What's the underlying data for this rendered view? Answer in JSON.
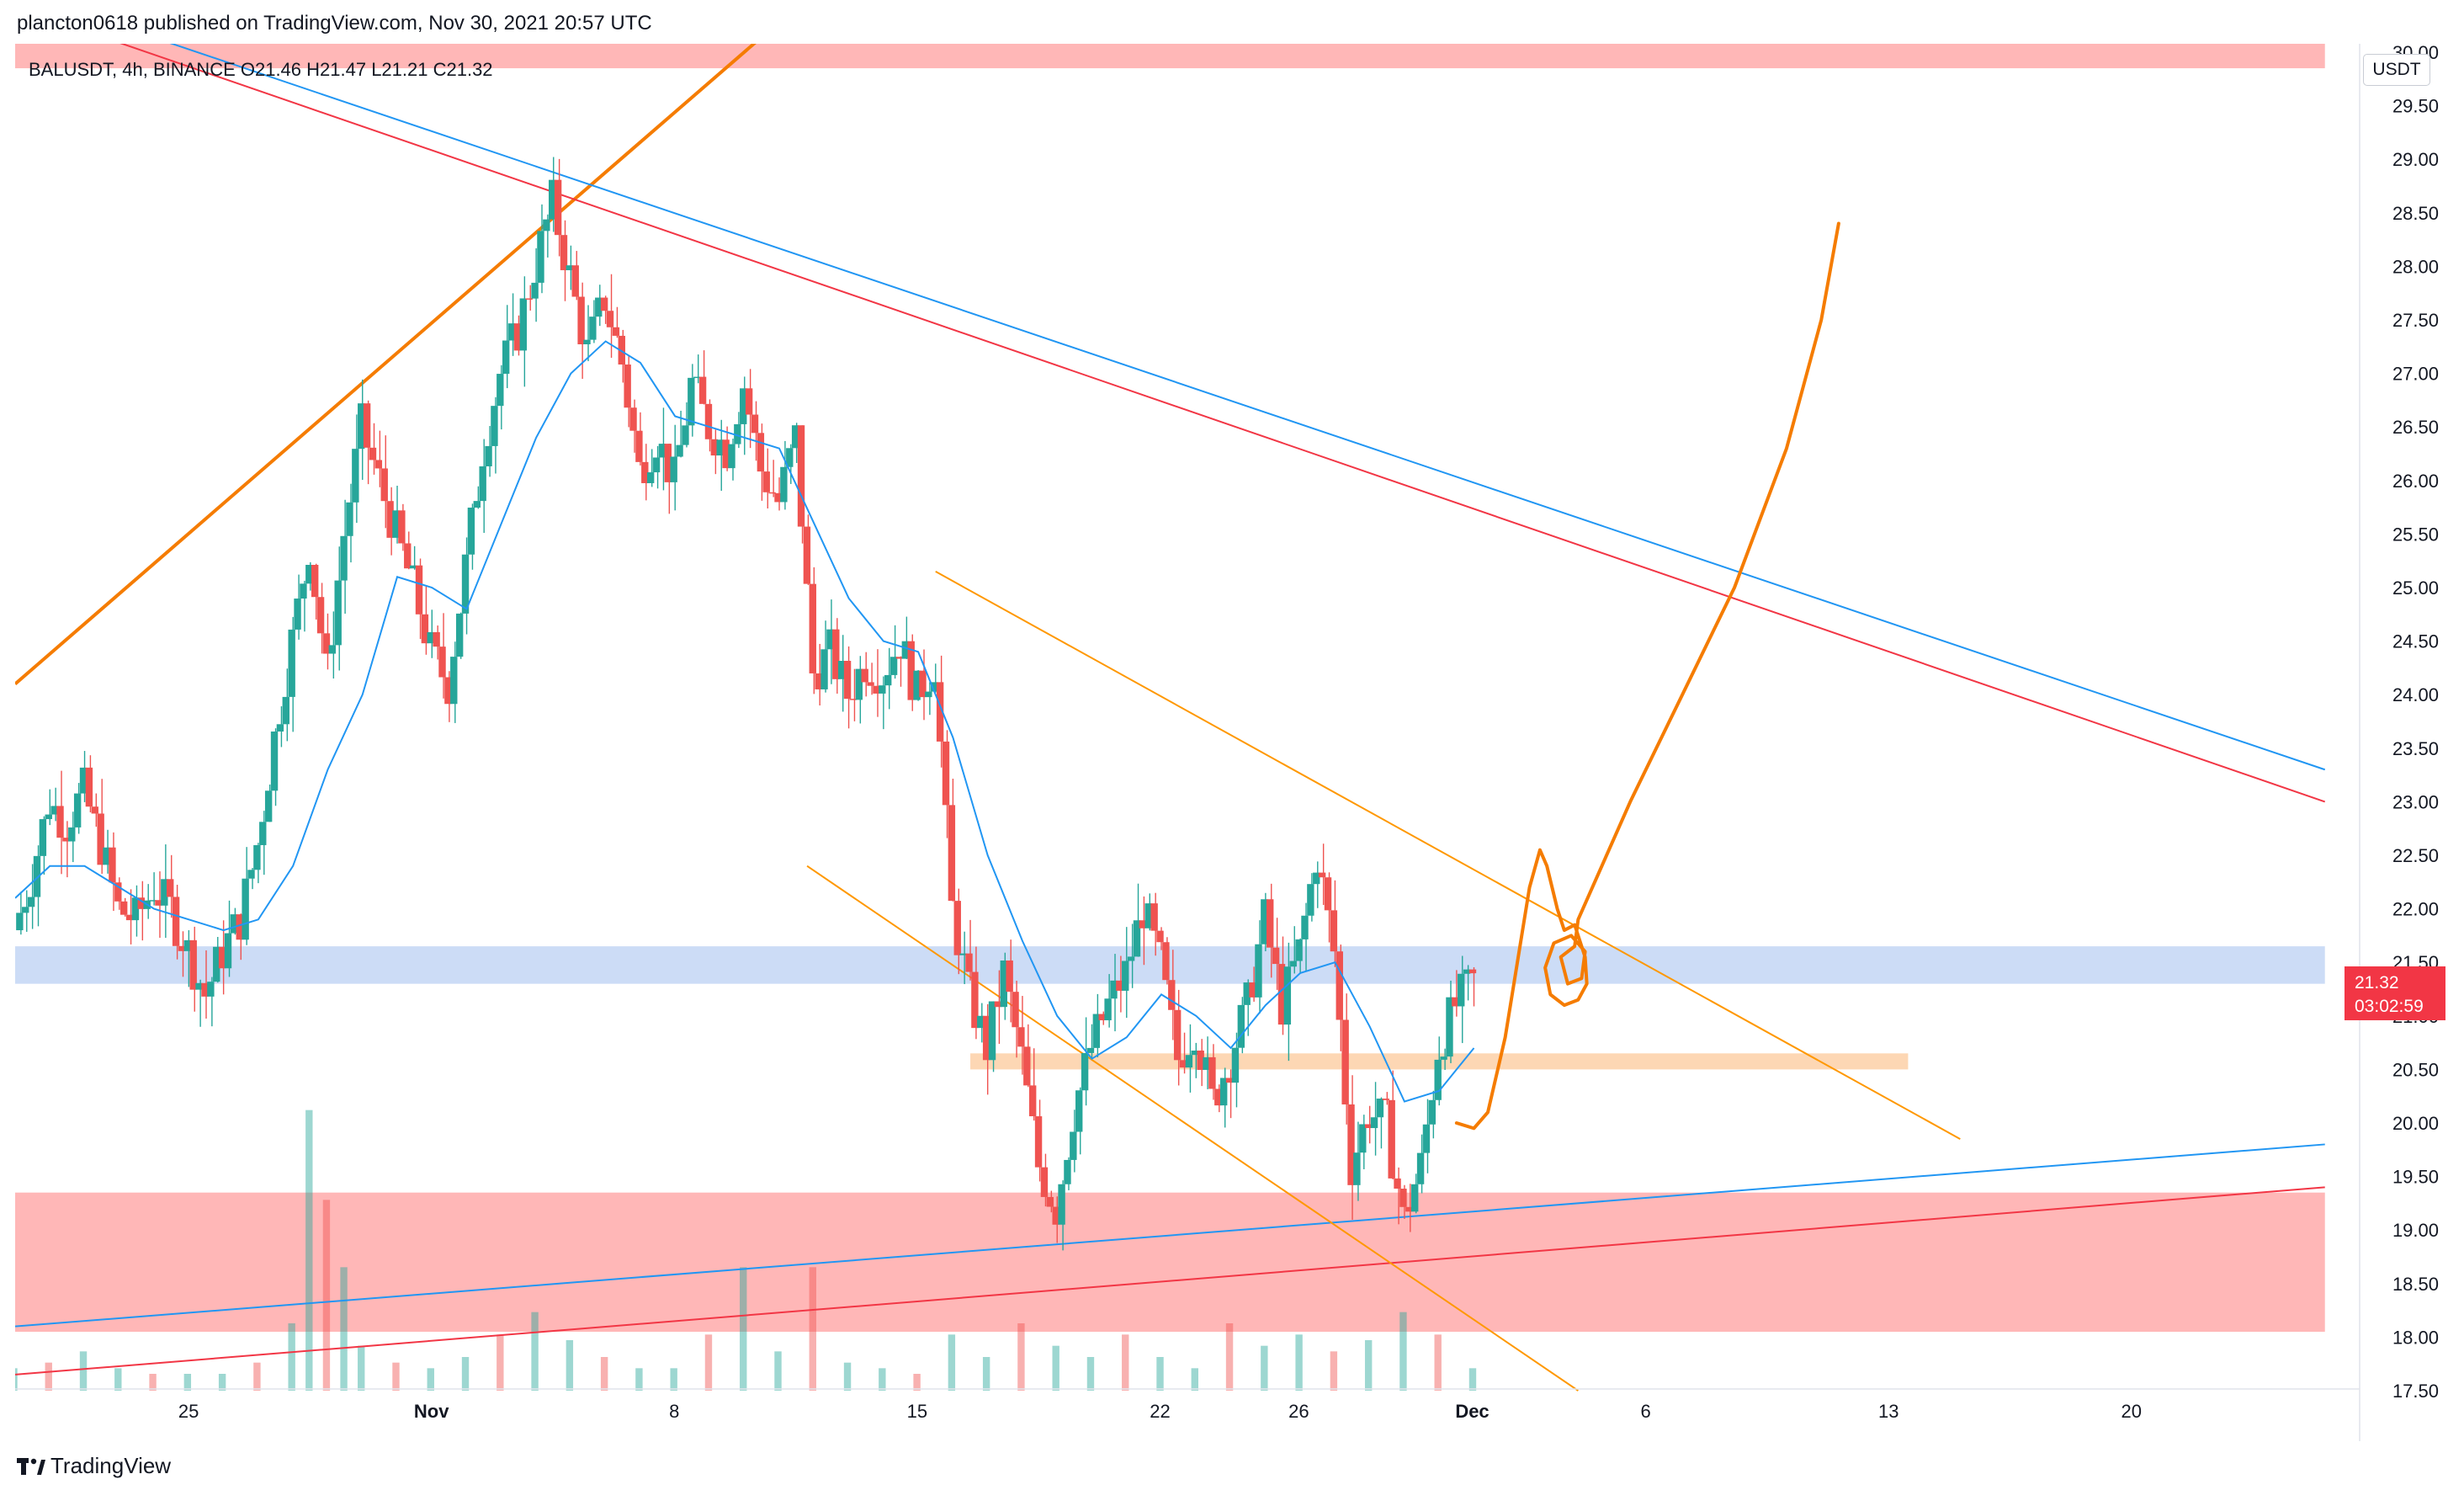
{
  "header": {
    "published": "plancton0618 published on TradingView.com, Nov 30, 2021 20:57 UTC"
  },
  "symbol": {
    "info": "BALUSDT, 4h, BINANCE  O21.46  H21.47  L21.21  C21.32"
  },
  "currency": "USDT",
  "last_price": {
    "price": "21.32",
    "countdown": "03:02:59",
    "color": "#f23645"
  },
  "footer": {
    "brand": "TradingView"
  },
  "colors": {
    "up": "#26a69a",
    "down": "#ef5350",
    "ema": "#2196f3",
    "zone_red": "#ffb3b3",
    "zone_blue": "#c7d8f5",
    "zone_orange": "#fdd5b0",
    "trend_orange": "#f57c00",
    "channel_orange": "#ff9800",
    "line_red": "#f23645",
    "line_blue": "#2196f3"
  },
  "chart_data": {
    "type": "candlestick",
    "symbol": "BALUSDT",
    "interval": "4h",
    "exchange": "BINANCE",
    "ylim": [
      17.5,
      30.0
    ],
    "y_ticks": [
      17.5,
      18.0,
      18.5,
      19.0,
      19.5,
      20.0,
      20.5,
      21.0,
      21.5,
      22.0,
      22.5,
      23.0,
      23.5,
      24.0,
      24.5,
      25.0,
      25.5,
      26.0,
      26.5,
      27.0,
      27.5,
      28.0,
      28.5,
      29.0,
      29.5,
      30.0
    ],
    "x_ticks": [
      {
        "label": "25",
        "day": -6
      },
      {
        "label": "Nov",
        "day": 1
      },
      {
        "label": "8",
        "day": 8
      },
      {
        "label": "15",
        "day": 15
      },
      {
        "label": "22",
        "day": 22
      },
      {
        "label": "26",
        "day": 26
      },
      {
        "label": "Dec",
        "day": 31
      },
      {
        "label": "6",
        "day": 36
      },
      {
        "label": "13",
        "day": 43
      },
      {
        "label": "20",
        "day": 50
      }
    ],
    "x_ticks_bold": [
      "Nov",
      "Dec"
    ],
    "xlim_days": [
      -11.0,
      56.5
    ],
    "ohlc_close_path": [
      [
        -11.0,
        21.8
      ],
      [
        -10.5,
        22.3
      ],
      [
        -10.0,
        23.0
      ],
      [
        -9.5,
        22.8
      ],
      [
        -9.0,
        23.1
      ],
      [
        -8.5,
        22.6
      ],
      [
        -8.0,
        22.0
      ],
      [
        -7.5,
        21.9
      ],
      [
        -7.0,
        22.2
      ],
      [
        -6.5,
        22.0
      ],
      [
        -6.0,
        21.6
      ],
      [
        -5.5,
        21.2
      ],
      [
        -5.0,
        21.6
      ],
      [
        -4.5,
        21.9
      ],
      [
        -4.0,
        22.6
      ],
      [
        -3.5,
        23.6
      ],
      [
        -3.0,
        24.5
      ],
      [
        -2.5,
        25.4
      ],
      [
        -2.0,
        24.2
      ],
      [
        -1.5,
        25.5
      ],
      [
        -1.0,
        26.5
      ],
      [
        -0.5,
        26.0
      ],
      [
        0.0,
        25.5
      ],
      [
        0.5,
        25.0
      ],
      [
        1.0,
        24.4
      ],
      [
        1.5,
        24.1
      ],
      [
        2.0,
        25.2
      ],
      [
        2.5,
        26.3
      ],
      [
        3.0,
        27.0
      ],
      [
        3.5,
        27.4
      ],
      [
        4.0,
        28.0
      ],
      [
        4.5,
        28.6
      ],
      [
        5.0,
        27.9
      ],
      [
        5.5,
        27.2
      ],
      [
        6.0,
        27.7
      ],
      [
        6.5,
        27.1
      ],
      [
        7.0,
        26.1
      ],
      [
        7.5,
        26.4
      ],
      [
        8.0,
        26.0
      ],
      [
        8.5,
        26.9
      ],
      [
        9.0,
        26.5
      ],
      [
        9.5,
        26.3
      ],
      [
        10.0,
        26.9
      ],
      [
        10.5,
        26.1
      ],
      [
        11.0,
        25.8
      ],
      [
        11.5,
        26.4
      ],
      [
        12.0,
        24.2
      ],
      [
        12.5,
        24.4
      ],
      [
        13.0,
        24.0
      ],
      [
        13.5,
        24.3
      ],
      [
        14.0,
        24.2
      ],
      [
        14.5,
        24.5
      ],
      [
        15.0,
        24.0
      ],
      [
        15.5,
        24.3
      ],
      [
        16.0,
        22.0
      ],
      [
        16.5,
        21.2
      ],
      [
        17.0,
        20.7
      ],
      [
        17.5,
        21.4
      ],
      [
        18.0,
        20.6
      ],
      [
        18.5,
        19.6
      ],
      [
        19.0,
        19.2
      ],
      [
        19.5,
        20.1
      ],
      [
        20.0,
        20.7
      ],
      [
        20.5,
        21.1
      ],
      [
        21.0,
        21.4
      ],
      [
        21.5,
        22.0
      ],
      [
        22.0,
        21.5
      ],
      [
        22.5,
        20.6
      ],
      [
        23.0,
        20.9
      ],
      [
        23.5,
        20.2
      ],
      [
        24.0,
        20.6
      ],
      [
        24.5,
        21.1
      ],
      [
        25.0,
        21.9
      ],
      [
        25.5,
        21.1
      ],
      [
        26.0,
        21.6
      ],
      [
        26.5,
        22.5
      ],
      [
        27.0,
        21.6
      ],
      [
        27.5,
        19.6
      ],
      [
        28.0,
        20.1
      ],
      [
        28.5,
        20.0
      ],
      [
        29.0,
        19.1
      ],
      [
        29.5,
        19.6
      ],
      [
        30.0,
        20.7
      ],
      [
        30.5,
        21.1
      ],
      [
        31.0,
        21.32
      ]
    ],
    "ema_20": [
      [
        -11.0,
        22.1
      ],
      [
        -10.0,
        22.4
      ],
      [
        -9.0,
        22.4
      ],
      [
        -8.0,
        22.2
      ],
      [
        -7.0,
        22.0
      ],
      [
        -6.0,
        21.9
      ],
      [
        -5.0,
        21.8
      ],
      [
        -4.0,
        21.9
      ],
      [
        -3.0,
        22.4
      ],
      [
        -2.0,
        23.3
      ],
      [
        -1.0,
        24.0
      ],
      [
        0.0,
        25.1
      ],
      [
        1.0,
        25.0
      ],
      [
        2.0,
        24.8
      ],
      [
        3.0,
        25.6
      ],
      [
        4.0,
        26.4
      ],
      [
        5.0,
        27.0
      ],
      [
        6.0,
        27.3
      ],
      [
        7.0,
        27.1
      ],
      [
        8.0,
        26.6
      ],
      [
        9.0,
        26.5
      ],
      [
        10.0,
        26.4
      ],
      [
        11.0,
        26.3
      ],
      [
        12.0,
        25.6
      ],
      [
        13.0,
        24.9
      ],
      [
        14.0,
        24.5
      ],
      [
        15.0,
        24.4
      ],
      [
        16.0,
        23.6
      ],
      [
        17.0,
        22.5
      ],
      [
        18.0,
        21.7
      ],
      [
        19.0,
        21.0
      ],
      [
        20.0,
        20.6
      ],
      [
        21.0,
        20.8
      ],
      [
        22.0,
        21.2
      ],
      [
        23.0,
        21.0
      ],
      [
        24.0,
        20.7
      ],
      [
        25.0,
        21.1
      ],
      [
        26.0,
        21.4
      ],
      [
        27.0,
        21.5
      ],
      [
        28.0,
        20.9
      ],
      [
        29.0,
        20.2
      ],
      [
        30.0,
        20.3
      ],
      [
        31.0,
        20.7
      ]
    ],
    "volume": [
      [
        -11.0,
        4
      ],
      [
        -10.0,
        5
      ],
      [
        -9.0,
        7
      ],
      [
        -8.0,
        4
      ],
      [
        -7.0,
        3
      ],
      [
        -6.0,
        3
      ],
      [
        -5.0,
        3
      ],
      [
        -4.0,
        5
      ],
      [
        -3.0,
        12
      ],
      [
        -2.5,
        50
      ],
      [
        -2.0,
        34
      ],
      [
        -1.5,
        22
      ],
      [
        -1.0,
        8
      ],
      [
        0.0,
        5
      ],
      [
        1.0,
        4
      ],
      [
        2.0,
        6
      ],
      [
        3.0,
        10
      ],
      [
        4.0,
        14
      ],
      [
        5.0,
        9
      ],
      [
        6.0,
        6
      ],
      [
        7.0,
        4
      ],
      [
        8.0,
        4
      ],
      [
        9.0,
        10
      ],
      [
        10.0,
        22
      ],
      [
        11.0,
        7
      ],
      [
        12.0,
        22
      ],
      [
        13.0,
        5
      ],
      [
        14.0,
        4
      ],
      [
        15.0,
        3
      ],
      [
        16.0,
        10
      ],
      [
        17.0,
        6
      ],
      [
        18.0,
        12
      ],
      [
        19.0,
        8
      ],
      [
        20.0,
        6
      ],
      [
        21.0,
        10
      ],
      [
        22.0,
        6
      ],
      [
        23.0,
        4
      ],
      [
        24.0,
        12
      ],
      [
        25.0,
        8
      ],
      [
        26.0,
        10
      ],
      [
        27.0,
        7
      ],
      [
        28.0,
        9
      ],
      [
        29.0,
        14
      ],
      [
        30.0,
        10
      ],
      [
        31.0,
        4
      ]
    ],
    "zones": [
      {
        "name": "resistance-zone",
        "y0": 29.85,
        "y1": 30.4,
        "x0": -11.0,
        "x1": 55.5,
        "color": "#ffb3b3"
      },
      {
        "name": "support-zone-blue",
        "y0": 21.3,
        "y1": 21.65,
        "x0": -11.0,
        "x1": 55.5,
        "color": "#c7d8f5"
      },
      {
        "name": "support-zone-orange",
        "y0": 20.5,
        "y1": 20.65,
        "x0": 16.5,
        "x1": 43.5,
        "color": "#fdd5b0"
      },
      {
        "name": "demand-zone",
        "y0": 18.05,
        "y1": 19.35,
        "x0": -11.0,
        "x1": 55.5,
        "color": "#ffb3b3"
      }
    ],
    "lines": [
      {
        "name": "orange-rising-trendline",
        "p1": [
          -11.0,
          24.1
        ],
        "p2": [
          10.7,
          30.2
        ],
        "color": "#f57c00",
        "width": 4
      },
      {
        "name": "red-falling-trendline",
        "p1": [
          -9.0,
          30.2
        ],
        "p2": [
          55.5,
          23.0
        ],
        "color": "#f23645",
        "width": 2
      },
      {
        "name": "blue-falling-trendline",
        "p1": [
          -8.5,
          30.3
        ],
        "p2": [
          55.5,
          23.3
        ],
        "color": "#2196f3",
        "width": 2
      },
      {
        "name": "blue-rising-trendline",
        "p1": [
          -11.0,
          18.1
        ],
        "p2": [
          55.5,
          19.8
        ],
        "color": "#2196f3",
        "width": 2
      },
      {
        "name": "red-rising-trendline",
        "p1": [
          -11.0,
          17.65
        ],
        "p2": [
          55.5,
          19.4
        ],
        "color": "#f23645",
        "width": 2
      },
      {
        "name": "channel-upper-line",
        "p1": [
          15.5,
          25.15
        ],
        "p2": [
          45.0,
          19.85
        ],
        "color": "#ff9800",
        "width": 2
      },
      {
        "name": "channel-lower-line",
        "p1": [
          11.8,
          22.4
        ],
        "p2": [
          34.0,
          17.5
        ],
        "color": "#ff9800",
        "width": 2
      }
    ],
    "projection_path": [
      [
        30.5,
        20.0
      ],
      [
        31.0,
        19.95
      ],
      [
        31.4,
        20.1
      ],
      [
        31.9,
        20.8
      ],
      [
        32.3,
        21.6
      ],
      [
        32.6,
        22.2
      ],
      [
        32.9,
        22.55
      ],
      [
        33.1,
        22.4
      ],
      [
        33.4,
        22.0
      ],
      [
        33.6,
        21.8
      ],
      [
        33.9,
        21.85
      ],
      [
        34.2,
        21.55
      ],
      [
        34.25,
        21.3
      ],
      [
        34.0,
        21.15
      ],
      [
        33.6,
        21.1
      ],
      [
        33.2,
        21.2
      ],
      [
        33.05,
        21.45
      ],
      [
        33.3,
        21.68
      ],
      [
        33.8,
        21.75
      ],
      [
        34.2,
        21.6
      ],
      [
        34.1,
        21.35
      ],
      [
        33.7,
        21.3
      ],
      [
        33.5,
        21.55
      ],
      [
        33.9,
        21.65
      ],
      [
        34.0,
        21.9
      ],
      [
        35.5,
        23.0
      ],
      [
        37.0,
        24.0
      ],
      [
        38.5,
        25.0
      ],
      [
        40.0,
        26.3
      ],
      [
        41.0,
        27.5
      ],
      [
        41.5,
        28.4
      ]
    ],
    "title": "",
    "grid": false,
    "legend": "none"
  }
}
